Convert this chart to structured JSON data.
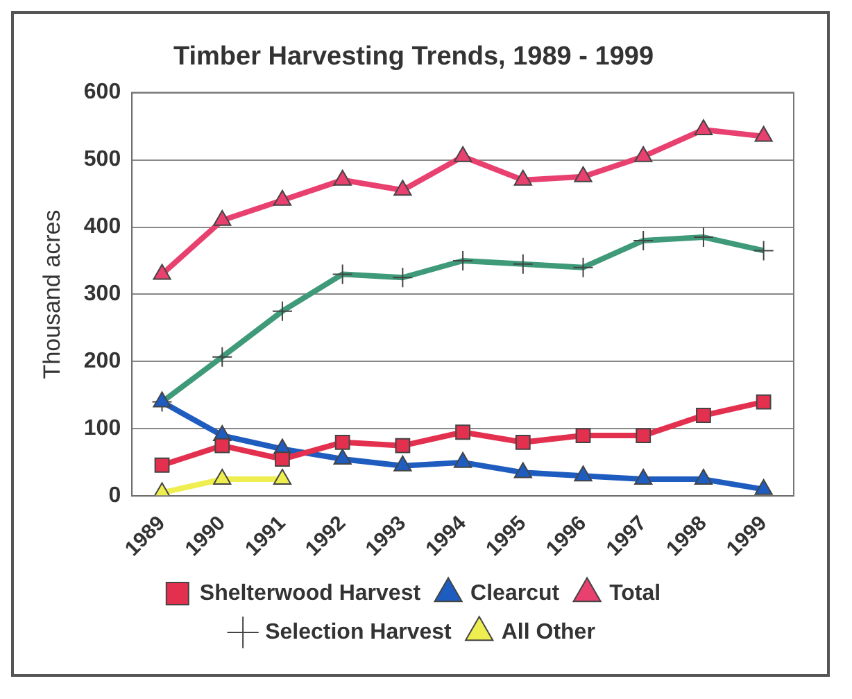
{
  "chart_data": {
    "type": "line",
    "title": "Timber Harvesting Trends, 1989 - 1999",
    "ylabel": "Thousand acres",
    "categories": [
      "1989",
      "1990",
      "1991",
      "1992",
      "1993",
      "1994",
      "1995",
      "1996",
      "1997",
      "1998",
      "1999"
    ],
    "series": [
      {
        "name": "Shelterwood Harvest",
        "color": "#e3304e",
        "marker": "square",
        "values": [
          46,
          75,
          55,
          80,
          75,
          95,
          80,
          90,
          90,
          120,
          140
        ]
      },
      {
        "name": "Clearcut",
        "color": "#1f5cbf",
        "marker": "triangle",
        "values": [
          140,
          90,
          70,
          55,
          45,
          50,
          35,
          30,
          25,
          25,
          10
        ]
      },
      {
        "name": "Total",
        "color": "#e8406f",
        "marker": "triangle",
        "values": [
          330,
          410,
          440,
          470,
          455,
          505,
          470,
          475,
          505,
          545,
          535
        ]
      },
      {
        "name": "Selection Harvest",
        "color": "#3f9a7a",
        "marker": "cross",
        "values": [
          140,
          207,
          275,
          330,
          325,
          350,
          345,
          340,
          380,
          385,
          365
        ]
      },
      {
        "name": "All Other",
        "color": "#eeee50",
        "marker": "triangle",
        "values": [
          5,
          25,
          25,
          null,
          null,
          null,
          null,
          null,
          null,
          null,
          null
        ]
      }
    ],
    "ylim": [
      0,
      600
    ],
    "yticks": [
      0,
      100,
      200,
      300,
      400,
      500,
      600
    ],
    "grid": "y",
    "legend": "bottom"
  }
}
